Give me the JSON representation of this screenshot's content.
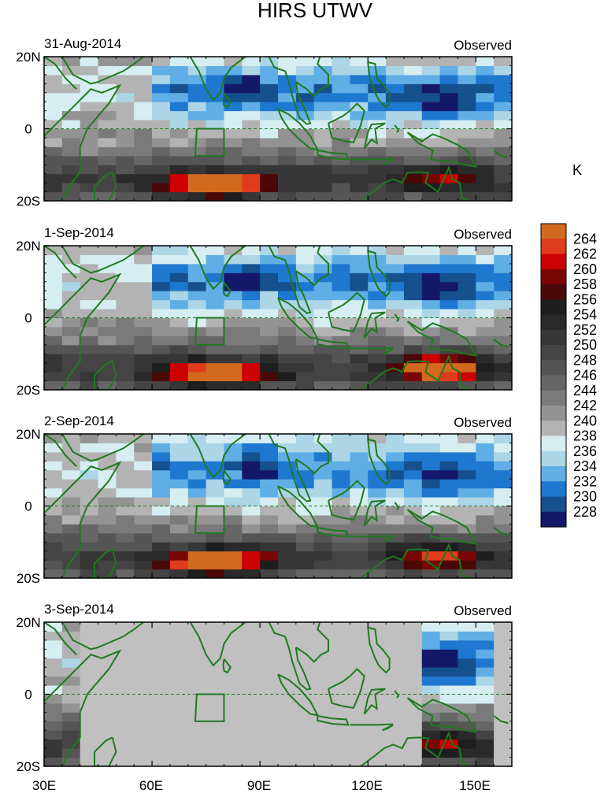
{
  "chart_data": {
    "type": "heatmap",
    "title": "HIRS UTWV",
    "units": "K",
    "x_ticks": [
      "30E",
      "60E",
      "90E",
      "120E",
      "150E"
    ],
    "x_tick_values": [
      30,
      60,
      90,
      120,
      150
    ],
    "xlim": [
      30,
      160
    ],
    "y_ticks": [
      "20N",
      "0",
      "20S"
    ],
    "y_tick_values": [
      20,
      0,
      -20
    ],
    "ylim": [
      -20,
      20
    ],
    "colorbar_labels": [
      "264",
      "262",
      "260",
      "258",
      "256",
      "254",
      "252",
      "250",
      "248",
      "246",
      "244",
      "242",
      "240",
      "238",
      "236",
      "234",
      "232",
      "230",
      "228"
    ],
    "colorbar_colors": [
      "#d2691e",
      "#e03c1c",
      "#cc0000",
      "#7a0505",
      "#4a0808",
      "#1e1e1e",
      "#2a2a2a",
      "#363636",
      "#444444",
      "#555555",
      "#666666",
      "#7a7a7a",
      "#939393",
      "#b3b3b3",
      "#d6eef2",
      "#acd6e6",
      "#5faee6",
      "#1f78d0",
      "#15508f",
      "#14186b"
    ],
    "panels": [
      {
        "date": "31-Aug-2014",
        "label": "Observed"
      },
      {
        "date": "1-Sep-2014",
        "label": "Observed"
      },
      {
        "date": "2-Sep-2014",
        "label": "Observed"
      },
      {
        "date": "3-Sep-2014",
        "label": "Observed"
      }
    ],
    "land_color": "#1f7a1f",
    "missing_color": "#c0c0c0"
  }
}
